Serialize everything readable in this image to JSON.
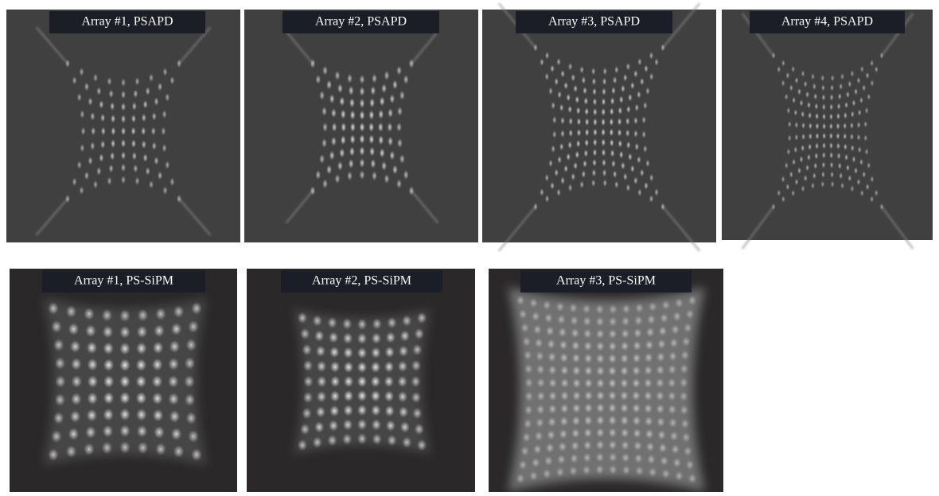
{
  "panels": [
    {
      "label": "Array #1, PSAPD"
    },
    {
      "label": "Array #2, PSAPD"
    },
    {
      "label": "Array #3, PSAPD"
    },
    {
      "label": "Array #4, PSAPD"
    },
    {
      "label": "Array #1, PS-SiPM"
    },
    {
      "label": "Array #2, PS-SiPM"
    },
    {
      "label": "Array #3, PS-SiPM"
    }
  ]
}
